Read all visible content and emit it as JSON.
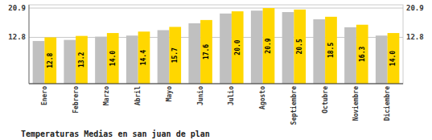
{
  "chart_data": {
    "type": "bar",
    "title": "Temperaturas Medias en san juan de plan",
    "categories": [
      "Enero",
      "Febrero",
      "Marzo",
      "Abril",
      "Mayo",
      "Junio",
      "Julio",
      "Agosto",
      "Septiembre",
      "Octubre",
      "Noviembre",
      "Diciembre"
    ],
    "series": [
      {
        "color": "#C0C0C0",
        "values": [
          11.8,
          12.1,
          13.0,
          13.3,
          14.8,
          16.7,
          19.4,
          20.2,
          19.8,
          17.8,
          15.6,
          13.3
        ]
      },
      {
        "color": "#FFD700",
        "values": [
          12.8,
          13.2,
          14.0,
          14.4,
          15.7,
          17.6,
          20.0,
          20.9,
          20.5,
          18.5,
          16.3,
          14.0
        ],
        "value_labels": [
          "12.8",
          "13.2",
          "14.0",
          "14.4",
          "15.7",
          "17.6",
          "20.0",
          "20.9",
          "20.5",
          "18.5",
          "16.3",
          "14.0"
        ],
        "data_labels": true
      }
    ],
    "ylim": [
      0,
      21.8
    ],
    "yticks": [
      12.8,
      20.9
    ],
    "grid": true
  }
}
